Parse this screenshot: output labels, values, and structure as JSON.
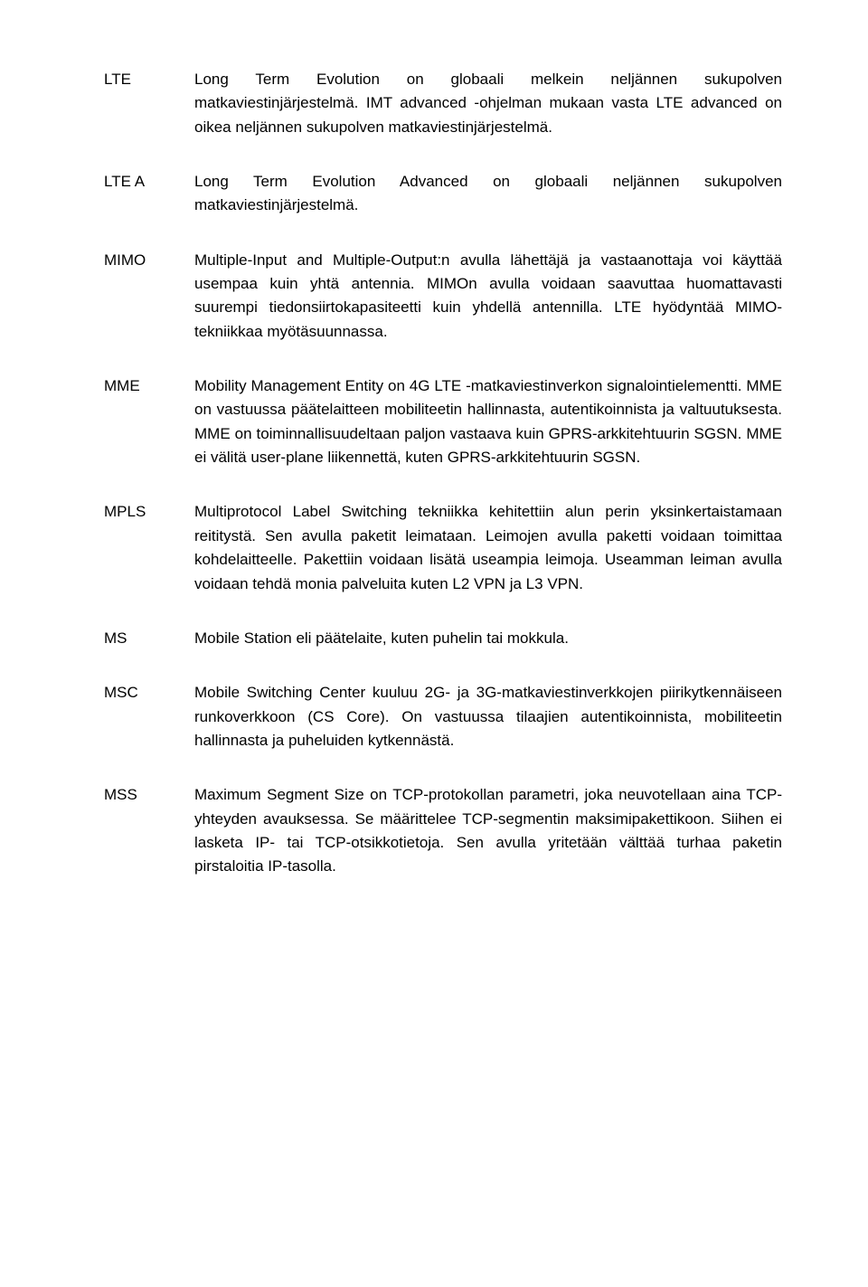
{
  "entries": [
    {
      "term": "LTE",
      "definition": "Long Term Evolution on globaali melkein neljännen sukupolven matkaviestinjärjestelmä. IMT advanced -ohjelman mukaan vasta LTE advanced on oikea neljännen sukupolven matkaviestinjärjestelmä."
    },
    {
      "term": "LTE A",
      "definition": "Long Term Evolution Advanced on globaali neljännen sukupolven matkaviestinjärjestelmä."
    },
    {
      "term": "MIMO",
      "definition": "Multiple-Input and Multiple-Output:n avulla lähettäjä ja vastaanottaja voi käyttää usempaa kuin yhtä antennia. MIMOn avulla voidaan saavuttaa huomattavasti suurempi tiedonsiirtokapasiteetti kuin yhdellä antennilla. LTE hyödyntää MIMO-tekniikkaa myötäsuunnassa."
    },
    {
      "term": "MME",
      "definition": "Mobility Management Entity on 4G LTE -matkaviestinverkon signalointielementti. MME on vastuussa päätelaitteen mobiliteetin hallinnasta, autentikoinnista ja valtuutuksesta. MME on toiminnallisuudeltaan paljon vastaava kuin GPRS-arkkitehtuurin SGSN. MME ei välitä user-plane liikennettä, kuten GPRS-arkkitehtuurin SGSN."
    },
    {
      "term": "MPLS",
      "definition": "Multiprotocol Label Switching tekniikka kehitettiin alun perin yksinkertaistamaan reititystä. Sen avulla paketit leimataan. Leimojen avulla paketti voidaan toimittaa kohdelaitteelle. Pakettiin voidaan lisätä useampia leimoja. Useamman leiman avulla voidaan tehdä monia palveluita kuten L2 VPN ja L3 VPN."
    },
    {
      "term": "MS",
      "definition": "Mobile Station eli päätelaite, kuten puhelin tai mokkula."
    },
    {
      "term": "MSC",
      "definition": "Mobile Switching Center kuuluu 2G- ja 3G-matkaviestinverkkojen piirikytkennäiseen runkoverkkoon (CS Core). On vastuussa tilaajien autentikoinnista, mobiliteetin hallinnasta ja puheluiden kytkennästä."
    },
    {
      "term": "MSS",
      "definition": "Maximum Segment Size on TCP-protokollan parametri, joka neuvotellaan aina TCP-yhteyden avauksessa. Se määrittelee TCP-segmentin maksimipakettikoon. Siihen ei lasketa IP- tai TCP-otsikkotietoja. Sen avulla yritetään välttää turhaa paketin pirstaloitia IP-tasolla."
    }
  ]
}
